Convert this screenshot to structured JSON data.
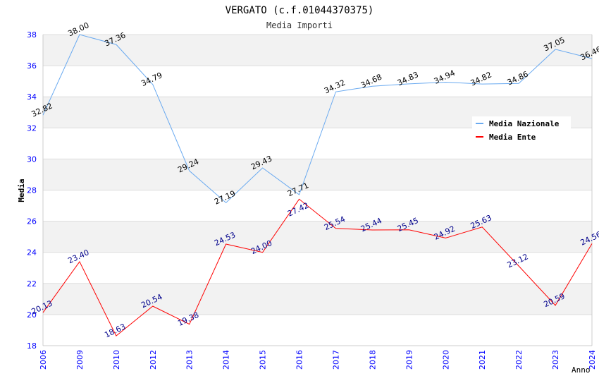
{
  "chart_data": {
    "type": "line",
    "title": "VERGATO (c.f.01044370375)",
    "subtitle": "Media Importi",
    "xlabel": "Anno",
    "ylabel": "Media",
    "ylim": [
      18,
      38
    ],
    "yticks": [
      18,
      20,
      22,
      24,
      26,
      28,
      30,
      32,
      34,
      36,
      38
    ],
    "categories": [
      "2006",
      "2009",
      "2010",
      "2012",
      "2013",
      "2014",
      "2015",
      "2016",
      "2017",
      "2018",
      "2019",
      "2020",
      "2021",
      "2022",
      "2023",
      "2024"
    ],
    "legend_position": "top-right",
    "series": [
      {
        "name": "Media Nazionale",
        "color": "#6aaaf0",
        "label_color": "#000000",
        "values": [
          32.82,
          38.0,
          37.36,
          34.79,
          29.24,
          27.19,
          29.43,
          27.71,
          34.32,
          34.68,
          34.83,
          34.94,
          34.82,
          34.86,
          37.05,
          36.46
        ]
      },
      {
        "name": "Media Ente",
        "color": "#ff0000",
        "label_color": "#00008b",
        "values": [
          20.13,
          23.4,
          18.63,
          20.54,
          19.38,
          24.53,
          24.0,
          27.42,
          25.54,
          25.44,
          25.45,
          24.92,
          25.63,
          23.12,
          20.59,
          24.56
        ]
      }
    ]
  }
}
